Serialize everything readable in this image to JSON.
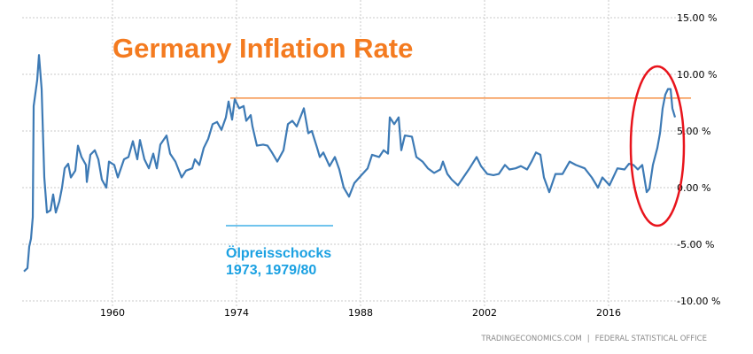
{
  "chart_data": {
    "type": "line",
    "title": "Germany Inflation Rate",
    "xlabel": "",
    "ylabel": "",
    "x_ticks": [
      "1960",
      "1974",
      "1988",
      "2002",
      "2016"
    ],
    "y_ticks": [
      {
        "value": 15,
        "label": "15.00 %"
      },
      {
        "value": 10,
        "label": "10.00 %"
      },
      {
        "value": 5,
        "label": "5.00 %"
      },
      {
        "value": 0,
        "label": "0.00 %"
      },
      {
        "value": -5,
        "label": "-5.00 %"
      },
      {
        "value": -10,
        "label": "-10.00 %"
      }
    ],
    "ylim": [
      -10,
      15
    ],
    "xlim": [
      1949.8,
      2026.3
    ],
    "grid": true,
    "y_axis_position": "right",
    "line_color": "#3d7ab5",
    "series": [
      {
        "x": [
          1950.0,
          1950.4,
          1950.6,
          1950.8,
          1951.0,
          1951.1,
          1951.5,
          1951.7,
          1952.0,
          1952.3,
          1952.6,
          1953.0,
          1953.3,
          1953.6,
          1954.0,
          1954.3,
          1954.6,
          1955.0,
          1955.3,
          1955.8,
          1956.1,
          1956.5,
          1957.0,
          1957.1,
          1957.5,
          1958.0,
          1958.4,
          1958.8,
          1959.3,
          1959.6,
          1960.2,
          1960.6,
          1961.3,
          1961.8,
          1962.3,
          1962.8,
          1963.1,
          1963.6,
          1964.1,
          1964.6,
          1965.0,
          1965.4,
          1966.1,
          1966.5,
          1967.1,
          1967.8,
          1968.3,
          1969.0,
          1969.3,
          1969.8,
          1970.3,
          1970.8,
          1971.3,
          1971.8,
          1972.3,
          1972.8,
          1973.1,
          1973.5,
          1973.8,
          1974.3,
          1974.8,
          1975.1,
          1975.6,
          1975.8,
          1976.3,
          1977.0,
          1977.5,
          1978.0,
          1978.6,
          1979.3,
          1979.8,
          1980.3,
          1980.8,
          1981.6,
          1982.1,
          1982.5,
          1983.1,
          1983.4,
          1983.8,
          1984.5,
          1985.1,
          1985.6,
          1986.1,
          1986.7,
          1987.3,
          1988.1,
          1988.8,
          1989.3,
          1990.1,
          1990.6,
          1991.1,
          1991.3,
          1991.8,
          1992.3,
          1992.6,
          1993.0,
          1993.8,
          1994.3,
          1995.0,
          1995.6,
          1996.3,
          1997.0,
          1997.3,
          1997.8,
          1998.3,
          1999.0,
          1999.6,
          2000.3,
          2001.1,
          2001.6,
          2002.3,
          2003.0,
          2003.6,
          2004.3,
          2004.8,
          2005.5,
          2006.1,
          2006.8,
          2007.3,
          2007.8,
          2008.3,
          2008.7,
          2009.3,
          2010.0,
          2010.8,
          2011.6,
          2012.3,
          2013.3,
          2014.1,
          2014.8,
          2015.3,
          2016.1,
          2017.0,
          2017.8,
          2018.3,
          2018.8,
          2019.3,
          2019.8,
          2020.3,
          2020.6,
          2021.0,
          2021.5,
          2021.8,
          2022.1,
          2022.4,
          2022.7,
          2023.0,
          2023.2,
          2023.5
        ],
        "values": [
          -7.4,
          -7.1,
          -5.2,
          -4.5,
          -2.6,
          7.2,
          9.5,
          11.7,
          8.7,
          0.9,
          -2.2,
          -2.0,
          -0.6,
          -2.2,
          -1.2,
          0.0,
          1.7,
          2.1,
          0.9,
          1.5,
          3.7,
          2.7,
          2.0,
          0.5,
          2.9,
          3.3,
          2.5,
          0.7,
          0.0,
          2.3,
          2.0,
          0.9,
          2.5,
          2.7,
          4.1,
          2.5,
          4.2,
          2.5,
          1.7,
          3.0,
          1.7,
          3.8,
          4.6,
          3.0,
          2.3,
          0.9,
          1.5,
          1.7,
          2.5,
          2.0,
          3.5,
          4.3,
          5.6,
          5.8,
          5.1,
          6.2,
          7.6,
          6.0,
          7.8,
          7.0,
          7.2,
          5.9,
          6.4,
          5.4,
          3.7,
          3.8,
          3.7,
          3.1,
          2.3,
          3.3,
          5.6,
          5.9,
          5.4,
          7.0,
          4.8,
          5.0,
          3.5,
          2.7,
          3.1,
          1.9,
          2.7,
          1.6,
          0.0,
          -0.8,
          0.4,
          1.1,
          1.7,
          2.9,
          2.7,
          3.3,
          3.0,
          6.2,
          5.6,
          6.2,
          3.3,
          4.6,
          4.5,
          2.7,
          2.3,
          1.7,
          1.3,
          1.6,
          2.3,
          1.2,
          0.7,
          0.2,
          0.9,
          1.7,
          2.7,
          1.9,
          1.2,
          1.1,
          1.2,
          2.0,
          1.6,
          1.7,
          1.9,
          1.6,
          2.3,
          3.1,
          2.9,
          0.9,
          -0.4,
          1.2,
          1.2,
          2.3,
          2.0,
          1.7,
          0.9,
          0.0,
          0.9,
          0.2,
          1.7,
          1.6,
          2.1,
          2.0,
          1.6,
          2.0,
          -0.4,
          -0.1,
          2.0,
          3.5,
          4.8,
          7.0,
          8.2,
          8.7,
          8.7,
          7.0,
          6.2
        ]
      }
    ],
    "annotations": {
      "reference_level": 7.9,
      "reference_line_color": "#f47b20",
      "oil_shock_label_line1": "Ölpreisschocks",
      "oil_shock_label_line2": "1973, 1979/80",
      "oil_shock_color": "#1ba1e2",
      "highlight_ellipse_color": "#e8141c",
      "title_color": "#f47b20"
    }
  },
  "footer": {
    "source_left": "TRADINGECONOMICS.COM",
    "separator": "|",
    "source_right": "FEDERAL STATISTICAL OFFICE"
  }
}
